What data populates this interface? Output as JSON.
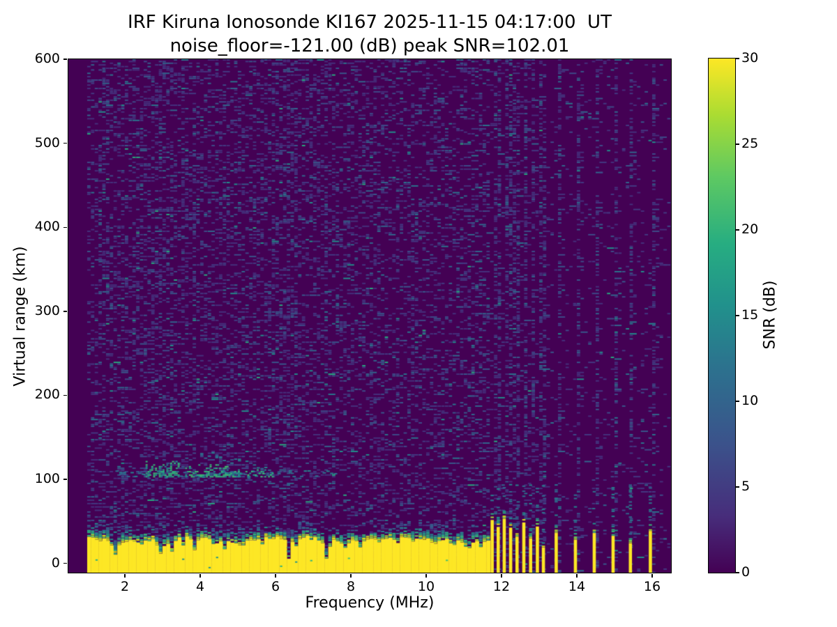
{
  "figure": {
    "title": "IRF Kiruna Ionosonde KI167 2025-11-15 04:17:00  UT",
    "subtitle": "noise_floor=-121.00 (dB) peak SNR=102.01",
    "xlabel": "Frequency (MHz)",
    "ylabel": "Virtual range (km)",
    "colorbar_label": "SNR (dB)"
  },
  "chart_data": {
    "type": "heatmap",
    "title": "IRF Kiruna Ionosonde KI167 2025-11-15 04:17:00  UT",
    "subtitle": "noise_floor=-121.00 (dB) peak SNR=102.01",
    "xlabel": "Frequency (MHz)",
    "ylabel": "Virtual range (km)",
    "station": "KI167",
    "timestamp_ut": "2025-11-15 04:17:00",
    "noise_floor_db": -121.0,
    "peak_snr_db": 102.01,
    "x_range_mhz": [
      0.5,
      16.5
    ],
    "y_range_km": [
      -11,
      600
    ],
    "x_ticks": [
      2,
      4,
      6,
      8,
      10,
      12,
      14,
      16
    ],
    "y_ticks": [
      0,
      100,
      200,
      300,
      400,
      500,
      600
    ],
    "colorbar": {
      "label": "SNR (dB)",
      "ticks": [
        0,
        5,
        10,
        15,
        20,
        25,
        30
      ],
      "vmin": 0,
      "vmax": 30,
      "colormap": "viridis",
      "position": "right"
    },
    "grid": false,
    "legend": false,
    "resolution": {
      "df_mhz": 0.1,
      "dkm": 2
    },
    "palette": {
      "background": "#440154",
      "band_yellow": "#fde725",
      "viridis_stops": [
        "#440154",
        "#472d7b",
        "#3b528b",
        "#2c728e",
        "#21918c",
        "#27ad81",
        "#5ec962",
        "#aadc32",
        "#fde725"
      ],
      "noise_colors": [
        [
          "#45317d",
          30
        ],
        [
          "#433a83",
          22
        ],
        [
          "#3e4c8a",
          16
        ],
        [
          "#38598c",
          10
        ],
        [
          "#31688e",
          6
        ],
        [
          "#2a768e",
          3
        ],
        [
          "#21918c",
          1.2
        ],
        [
          "#27ad81",
          0.5
        ]
      ],
      "trace_faint": [
        [
          "#2c728e",
          2
        ],
        [
          "#26828e",
          2
        ],
        [
          "#31688e",
          1
        ]
      ],
      "trace_bright": [
        [
          "#35b779",
          3
        ],
        [
          "#2ab07f",
          2
        ],
        [
          "#21918c",
          2
        ],
        [
          "#43bf71",
          1
        ],
        [
          "#26828e",
          1
        ]
      ],
      "transition_tiers": [
        {
          "max_dk": 4,
          "p": 0.92,
          "colors": [
            [
              "#d8e219",
              2
            ],
            [
              "#a8db34",
              2
            ],
            [
              "#6ece58",
              1.5
            ],
            [
              "#35b779",
              1
            ]
          ]
        },
        {
          "max_dk": 8,
          "p": 0.7,
          "colors": [
            [
              "#35b779",
              2
            ],
            [
              "#29af7f",
              2
            ],
            [
              "#21918c",
              1.5
            ]
          ]
        },
        {
          "max_dk": 13,
          "p": 0.4,
          "colors": [
            [
              "#21918c",
              2
            ],
            [
              "#26828e",
              2
            ],
            [
              "#2c728e",
              1
            ]
          ]
        },
        {
          "max_dk": 22,
          "p": 0.16,
          "colors": [
            [
              "#31688e",
              1
            ],
            [
              "#39568c",
              1
            ]
          ]
        }
      ]
    },
    "features": {
      "silent_below_mhz": 1.0,
      "noise": {
        "dense_until_mhz": 11.62,
        "dense_p": 0.26,
        "sparse_p": 0.05,
        "taper_after_mhz": 7.0,
        "taper_factor": 0.85,
        "column_boost_p": 0.32,
        "streak_boost_p": 0.09,
        "streak_columns_mhz": [
          2.9,
          3.2,
          3.8,
          6.3,
          6.52,
          7.3
        ]
      },
      "ground_band": {
        "f_start": 1.0,
        "f_end": 11.62,
        "base_top_km": 28,
        "wobble_km": 5,
        "fleck_p": 0.12,
        "notches": [
          {
            "f": 1.68,
            "w": 0.14,
            "d": 16
          },
          {
            "f": 2.35,
            "w": 0.1,
            "d": 8
          },
          {
            "f": 2.9,
            "w": 0.2,
            "d": 17
          },
          {
            "f": 3.2,
            "w": 0.14,
            "d": 19
          },
          {
            "f": 3.5,
            "w": 0.1,
            "d": 9
          },
          {
            "f": 3.8,
            "w": 0.14,
            "d": 16
          },
          {
            "f": 4.35,
            "w": 0.1,
            "d": 8
          },
          {
            "f": 4.62,
            "w": 0.1,
            "d": 10
          },
          {
            "f": 5.05,
            "w": 0.1,
            "d": 7
          },
          {
            "f": 5.6,
            "w": 0.1,
            "d": 7
          },
          {
            "f": 6.3,
            "w": 0.12,
            "d": 24
          },
          {
            "f": 6.52,
            "w": 0.1,
            "d": 14
          },
          {
            "f": 7.3,
            "w": 0.14,
            "d": 22
          },
          {
            "f": 7.78,
            "w": 0.08,
            "d": 7
          },
          {
            "f": 8.2,
            "w": 0.1,
            "d": 9
          },
          {
            "f": 8.75,
            "w": 0.1,
            "d": 7
          },
          {
            "f": 9.15,
            "w": 0.1,
            "d": 11
          },
          {
            "f": 9.6,
            "w": 0.08,
            "d": 6
          },
          {
            "f": 10.15,
            "w": 0.1,
            "d": 10
          },
          {
            "f": 10.65,
            "w": 0.1,
            "d": 8
          },
          {
            "f": 11.05,
            "w": 0.12,
            "d": 12
          },
          {
            "f": 11.38,
            "w": 0.08,
            "d": 8
          }
        ]
      },
      "rfi_stripes": [
        {
          "f": 11.76,
          "top_km": 48
        },
        {
          "f": 11.92,
          "top_km": 40
        },
        {
          "f": 12.08,
          "top_km": 54
        },
        {
          "f": 12.25,
          "top_km": 46
        },
        {
          "f": 12.42,
          "top_km": 34
        },
        {
          "f": 12.6,
          "top_km": 50
        },
        {
          "f": 12.78,
          "top_km": 28
        },
        {
          "f": 12.96,
          "top_km": 44
        },
        {
          "f": 13.12,
          "top_km": 18
        },
        {
          "f": 13.46,
          "top_km": 36
        },
        {
          "f": 13.97,
          "top_km": 28
        },
        {
          "f": 14.47,
          "top_km": 40
        },
        {
          "f": 14.97,
          "top_km": 33
        },
        {
          "f": 15.43,
          "top_km": 24
        },
        {
          "f": 15.96,
          "top_km": 38
        }
      ],
      "echo_trace": {
        "thin": {
          "f0": 1.65,
          "f1": 7.8,
          "km_lo": 104,
          "km_hi": 111,
          "p": 0.8
        },
        "clusters": [
          {
            "f0": 2.55,
            "f1": 3.42,
            "km_lo": 104,
            "km_hi": 123,
            "p": 0.62
          },
          {
            "f0": 3.6,
            "f1": 4.95,
            "km_lo": 104,
            "km_hi": 119,
            "p": 0.6
          },
          {
            "f0": 4.95,
            "f1": 5.92,
            "km_lo": 104,
            "km_hi": 113,
            "p": 0.5
          }
        ],
        "wisp": {
          "f0": 4.0,
          "f1": 5.85,
          "km_start": 133,
          "km_per_mhz": -11,
          "p": 0.38
        }
      }
    }
  }
}
